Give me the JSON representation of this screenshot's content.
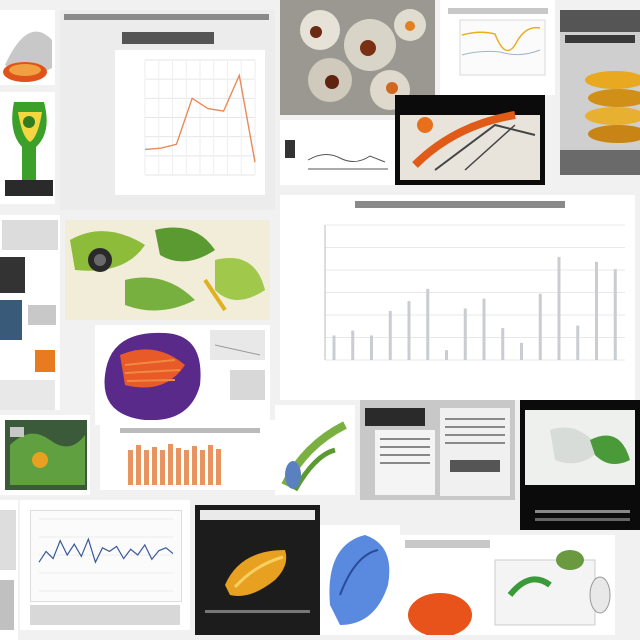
{
  "collage": {
    "tiles": [
      {
        "id": "top-left-orange-dome",
        "kind": "illustration"
      },
      {
        "id": "green-trophy",
        "kind": "illustration"
      },
      {
        "id": "line-chart-card",
        "kind": "chart"
      },
      {
        "id": "organic-lattice-photo",
        "kind": "photo"
      },
      {
        "id": "yellow-curve-chart",
        "kind": "chart"
      },
      {
        "id": "yellow-rolls-panel",
        "kind": "photo"
      },
      {
        "id": "orange-structure-dark",
        "kind": "photo"
      },
      {
        "id": "green-leaves-collage",
        "kind": "illustration"
      },
      {
        "id": "bar-chart-card",
        "kind": "chart"
      },
      {
        "id": "purple-orange-sphere",
        "kind": "illustration"
      },
      {
        "id": "orange-bars-card",
        "kind": "chart"
      },
      {
        "id": "green-pods-card",
        "kind": "illustration"
      },
      {
        "id": "document-card",
        "kind": "document"
      },
      {
        "id": "green-plant-dark",
        "kind": "illustration"
      },
      {
        "id": "blue-line-chart",
        "kind": "chart"
      },
      {
        "id": "yellow-fruit-dark",
        "kind": "photo"
      },
      {
        "id": "blue-creature-card",
        "kind": "illustration"
      },
      {
        "id": "orange-blob-card",
        "kind": "illustration"
      }
    ]
  },
  "chart_data": [
    {
      "type": "line",
      "values": [
        20,
        21,
        24,
        60,
        52,
        50,
        78,
        10
      ],
      "ylim": [
        0,
        90
      ]
    },
    {
      "type": "bar",
      "values": [
        10,
        12,
        10,
        20,
        24,
        29,
        4,
        21,
        25,
        13,
        7,
        27,
        42,
        14,
        40,
        37
      ],
      "ylim": [
        0,
        55
      ]
    },
    {
      "type": "line",
      "values": [
        40,
        55,
        45,
        70,
        50,
        65,
        48,
        72,
        40,
        60,
        55,
        62,
        45,
        58,
        50,
        64,
        44,
        56,
        60,
        52
      ],
      "ylim": [
        0,
        100
      ]
    }
  ]
}
